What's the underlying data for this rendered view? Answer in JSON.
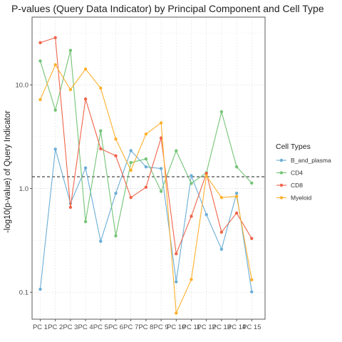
{
  "chart_data": {
    "type": "line",
    "title": "P-values (Query Data Indicator) by Principal Component and Cell Type",
    "xlabel": "",
    "ylabel": "-log10(p-value) of Query Indicator",
    "y_scale": "log10",
    "ylim": [
      0.055,
      45
    ],
    "y_ticks": [
      0.1,
      1.0,
      10.0
    ],
    "y_tick_labels": [
      "0.1",
      "1.0",
      "10.0"
    ],
    "threshold_line": 1.3,
    "grid": true,
    "legend_position": "right",
    "legend_title": "Cell Types",
    "categories": [
      "PC 1",
      "PC 2",
      "PC 3",
      "PC 4",
      "PC 5",
      "PC 6",
      "PC 7",
      "PC 8",
      "PC 9",
      "PC 10",
      "PC 11",
      "PC 12",
      "PC 13",
      "PC 14",
      "PC 15"
    ],
    "series": [
      {
        "name": "B_and_plasma",
        "color": "#6baed6",
        "values": [
          0.107,
          2.4,
          0.72,
          1.58,
          0.31,
          0.9,
          2.32,
          1.62,
          1.56,
          0.126,
          1.33,
          0.56,
          0.26,
          0.9,
          0.101
        ]
      },
      {
        "name": "CD4",
        "color": "#74c476",
        "values": [
          17.0,
          5.7,
          21.5,
          0.48,
          3.6,
          0.35,
          1.78,
          1.93,
          0.94,
          2.31,
          1.12,
          1.42,
          5.5,
          1.62,
          1.13
        ]
      },
      {
        "name": "CD8",
        "color": "#f0644a",
        "values": [
          25.5,
          28.5,
          0.66,
          7.3,
          2.42,
          2.07,
          0.82,
          1.03,
          3.08,
          0.235,
          0.54,
          1.4,
          0.38,
          0.58,
          0.33
        ]
      },
      {
        "name": "Myeloid",
        "color": "#fdb02d",
        "values": [
          7.2,
          15.6,
          9.0,
          14.2,
          9.3,
          3.0,
          1.5,
          3.35,
          4.3,
          0.063,
          0.133,
          1.32,
          0.82,
          0.84,
          0.132
        ]
      }
    ]
  }
}
